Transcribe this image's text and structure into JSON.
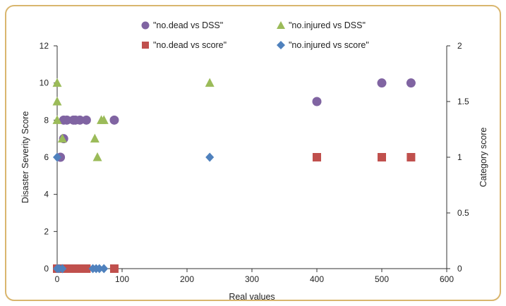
{
  "colors": {
    "frame": "#d9b66e",
    "axis": "#333333",
    "dead_dss": "#8064a2",
    "injured_dss": "#9bbb59",
    "dead_score": "#c0504d",
    "injured_score": "#4f81bd"
  },
  "chart_data": {
    "type": "scatter",
    "title": "",
    "xlabel": "Real values",
    "ylabel": "Disaster Severity Score",
    "y2label": "Category score",
    "xlim": [
      0,
      600
    ],
    "ylim": [
      0,
      12
    ],
    "y2lim": [
      0,
      2
    ],
    "x_ticks": [
      "0",
      "100",
      "200",
      "300",
      "400",
      "500",
      "600"
    ],
    "y_ticks": [
      "0",
      "2",
      "4",
      "6",
      "8",
      "10",
      "12"
    ],
    "y2_ticks": [
      "0",
      "0.5",
      "1",
      "1.5",
      "2"
    ],
    "grid": false,
    "legend_position": "top",
    "series": [
      {
        "name": "\"no.dead vs DSS\"",
        "marker": "circle",
        "axis": "left",
        "color": "#8064a2",
        "points": [
          [
            5,
            6
          ],
          [
            10,
            7
          ],
          [
            10,
            8
          ],
          [
            15,
            8
          ],
          [
            25,
            8
          ],
          [
            28,
            8
          ],
          [
            35,
            8
          ],
          [
            45,
            8
          ],
          [
            88,
            8
          ],
          [
            400,
            9
          ],
          [
            500,
            10
          ],
          [
            545,
            10
          ]
        ]
      },
      {
        "name": "\"no.injured vs DSS\"",
        "marker": "triangle",
        "axis": "left",
        "color": "#9bbb59",
        "points": [
          [
            0,
            10
          ],
          [
            0,
            9
          ],
          [
            0,
            8
          ],
          [
            8,
            7
          ],
          [
            58,
            7
          ],
          [
            62,
            6
          ],
          [
            68,
            8
          ],
          [
            72,
            8
          ],
          [
            235,
            10
          ]
        ]
      },
      {
        "name": "\"no.dead vs score\"",
        "marker": "square",
        "axis": "right",
        "color": "#c0504d",
        "points": [
          [
            0,
            0
          ],
          [
            5,
            0
          ],
          [
            10,
            0
          ],
          [
            15,
            0
          ],
          [
            20,
            0
          ],
          [
            25,
            0
          ],
          [
            30,
            0
          ],
          [
            35,
            0
          ],
          [
            40,
            0
          ],
          [
            45,
            0
          ],
          [
            88,
            0
          ],
          [
            400,
            1
          ],
          [
            500,
            1
          ],
          [
            545,
            1
          ]
        ]
      },
      {
        "name": "\"no.injured vs score\"",
        "marker": "diamond",
        "axis": "right",
        "color": "#4f81bd",
        "points": [
          [
            0,
            1
          ],
          [
            0,
            0
          ],
          [
            3,
            0
          ],
          [
            8,
            0
          ],
          [
            55,
            0
          ],
          [
            60,
            0
          ],
          [
            65,
            0
          ],
          [
            72,
            0
          ],
          [
            235,
            1
          ]
        ]
      }
    ]
  }
}
